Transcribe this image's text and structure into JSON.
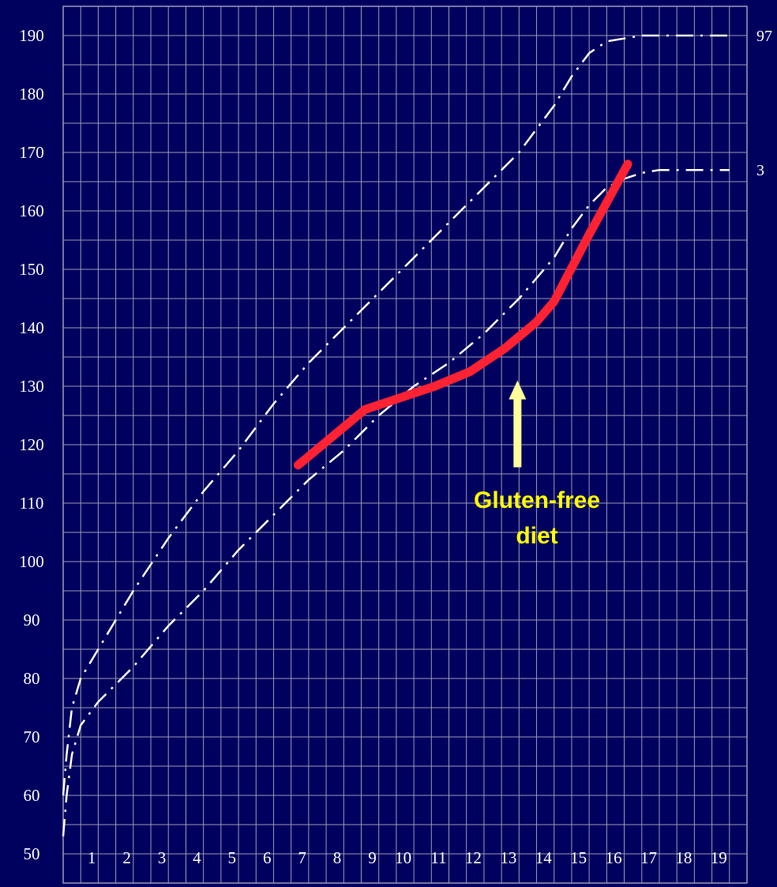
{
  "chart_data": {
    "type": "line",
    "title": "",
    "xlabel": "",
    "ylabel": "",
    "xlim": [
      0,
      19.5
    ],
    "ylim": [
      45,
      195
    ],
    "grid": true,
    "x_ticks": [
      "1",
      "2",
      "3",
      "4",
      "5",
      "6",
      "7",
      "8",
      "9",
      "10",
      "11",
      "12",
      "13",
      "14",
      "15",
      "16",
      "17",
      "18",
      "19"
    ],
    "y_ticks": [
      "50",
      "60",
      "70",
      "80",
      "90",
      "100",
      "110",
      "120",
      "130",
      "140",
      "150",
      "160",
      "170",
      "180",
      "190"
    ],
    "series": [
      {
        "name": "97",
        "style": "dash-dot",
        "color": "#ffffff",
        "x": [
          0,
          0.1,
          0.25,
          0.5,
          1,
          1.5,
          2,
          3,
          4,
          5,
          6,
          7,
          8,
          9,
          10,
          11,
          12,
          13,
          13.5,
          14,
          14.5,
          15,
          15.5,
          16,
          16.5,
          17,
          18,
          19
        ],
        "y": [
          60,
          67,
          75,
          80,
          85,
          90,
          95,
          104,
          112,
          119,
          127,
          134,
          140,
          146,
          152,
          158,
          164,
          170,
          174,
          178,
          183,
          187,
          189,
          189.5,
          190,
          190,
          190,
          190
        ]
      },
      {
        "name": "3",
        "style": "dash-dot",
        "color": "#ffffff",
        "x": [
          0,
          0.1,
          0.25,
          0.5,
          1,
          1.5,
          2,
          3,
          4,
          5,
          6,
          7,
          8,
          9,
          10,
          11,
          12,
          13,
          14,
          14.5,
          15,
          15.5,
          16,
          16.5,
          17,
          18,
          19
        ],
        "y": [
          53,
          60,
          67,
          72,
          76,
          79,
          82,
          89,
          95,
          102,
          108,
          114,
          119,
          125,
          130,
          134,
          139,
          145,
          152,
          157,
          161,
          164,
          165.5,
          166.5,
          167,
          167,
          167
        ]
      },
      {
        "name": "",
        "style": "solid",
        "color": "#ff2233",
        "x": [
          6.7,
          7.6,
          8.6,
          9.6,
          10.6,
          11.6,
          12.6,
          13.5,
          14.0,
          15.0,
          16.1
        ],
        "y": [
          116.5,
          121,
          126,
          128,
          130,
          132.5,
          136.5,
          141,
          144.5,
          156,
          168
        ]
      }
    ],
    "annotations": [
      {
        "text_lines": [
          "Gluten-free",
          "diet"
        ],
        "x": 13.0,
        "y": 131,
        "arrow": "up",
        "color": "#ffff99"
      }
    ]
  }
}
